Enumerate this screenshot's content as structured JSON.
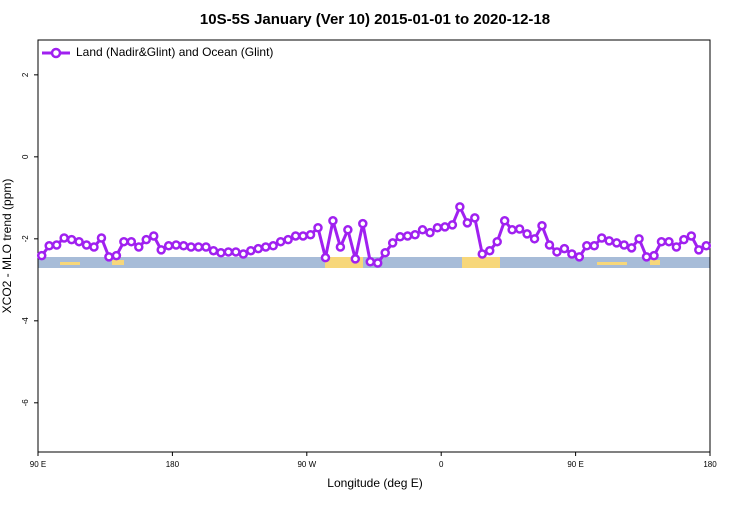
{
  "chart_data": {
    "type": "line",
    "title": "10S-5S January (Ver 10)   2015-01-01 to 2020-12-18",
    "x_label": "Longitude (deg E)",
    "y_label": "XCO2 - MLO trend (ppm)",
    "x": [
      92.5,
      97.5,
      102.5,
      107.5,
      112.5,
      117.5,
      122.5,
      127.5,
      132.5,
      137.5,
      142.5,
      147.5,
      152.5,
      157.5,
      162.5,
      167.5,
      172.5,
      177.5,
      182.5,
      187.5,
      192.5,
      197.5,
      202.5,
      207.5,
      212.5,
      217.5,
      222.5,
      227.5,
      232.5,
      237.5,
      242.5,
      247.5,
      252.5,
      257.5,
      262.5,
      267.5,
      272.5,
      277.5,
      282.5,
      287.5,
      292.5,
      297.5,
      302.5,
      307.5,
      312.5,
      317.5,
      322.5,
      327.5,
      332.5,
      337.5,
      342.5,
      347.5,
      352.5,
      357.5,
      362.5,
      367.5,
      372.5,
      377.5,
      382.5,
      387.5,
      392.5,
      397.5,
      402.5,
      407.5,
      412.5,
      417.5,
      422.5,
      427.5,
      432.5,
      437.5,
      442.5,
      447.5,
      452.5,
      457.5,
      462.5,
      467.5,
      472.5,
      477.5,
      482.5,
      487.5,
      492.5,
      497.5,
      502.5,
      507.5,
      512.5,
      517.5,
      522.5,
      527.5,
      532.5,
      537.5
    ],
    "series": [
      {
        "name": "Land (Nadir&Glint) and Ocean (Glint)",
        "color": "#a020f0",
        "values": [
          -2.41,
          -2.17,
          -2.15,
          -1.98,
          -2.02,
          -2.07,
          -2.15,
          -2.2,
          -1.98,
          -2.44,
          -2.41,
          -2.07,
          -2.07,
          -2.2,
          -2.02,
          -1.93,
          -2.27,
          -2.17,
          -2.15,
          -2.17,
          -2.2,
          -2.2,
          -2.2,
          -2.29,
          -2.34,
          -2.32,
          -2.32,
          -2.37,
          -2.29,
          -2.24,
          -2.2,
          -2.17,
          -2.07,
          -2.02,
          -1.93,
          -1.93,
          -1.9,
          -1.73,
          -2.46,
          -1.56,
          -2.2,
          -1.78,
          -2.49,
          -1.63,
          -2.56,
          -2.59,
          -2.34,
          -2.1,
          -1.95,
          -1.93,
          -1.9,
          -1.78,
          -1.85,
          -1.73,
          -1.71,
          -1.66,
          -1.22,
          -1.61,
          -1.49,
          -2.37,
          -2.29,
          -2.07,
          -1.56,
          -1.78,
          -1.76,
          -1.88,
          -2.0,
          -1.68,
          -2.15,
          -2.32,
          -2.24,
          -2.37,
          -2.44,
          -2.17,
          -2.17,
          -1.98,
          -2.05,
          -2.1,
          -2.15,
          -2.22,
          -2.0,
          -2.44,
          -2.41,
          -2.07,
          -2.07,
          -2.2,
          -2.02,
          -1.93,
          -2.27,
          -2.17
        ]
      }
    ],
    "xlim": [
      90,
      540
    ],
    "ylim": [
      -7.2,
      2.85
    ],
    "xticks": [
      {
        "value": 90,
        "label": "90 E"
      },
      {
        "value": 180,
        "label": "180"
      },
      {
        "value": 270,
        "label": "90 W"
      },
      {
        "value": 360,
        "label": "0"
      },
      {
        "value": 450,
        "label": "90 E"
      },
      {
        "value": 540,
        "label": "180"
      }
    ],
    "yticks": [
      2,
      0,
      -2,
      -4,
      -6
    ],
    "legend": "top-left"
  }
}
